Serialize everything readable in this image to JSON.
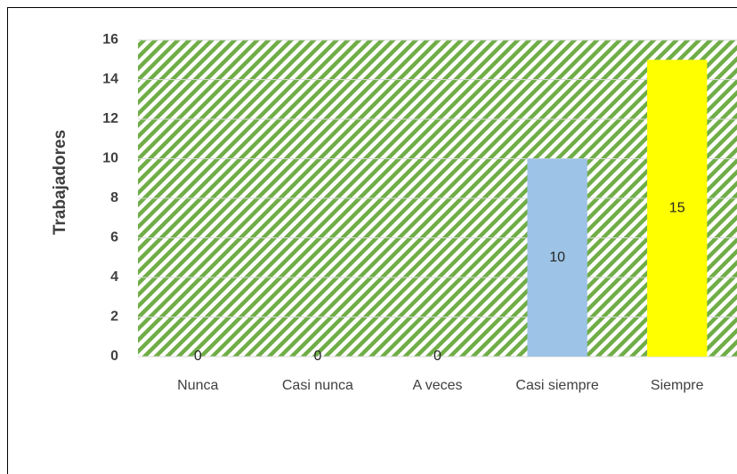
{
  "chart_data": {
    "type": "bar",
    "categories": [
      "Nunca",
      "Casi nunca",
      "A veces",
      "Casi siempre",
      "Siempre"
    ],
    "values": [
      0,
      0,
      0,
      10,
      15
    ],
    "colors": [
      null,
      null,
      null,
      "#9dc3e6",
      "#ffff00"
    ],
    "y_label": "Trabajadores",
    "ylim": [
      0,
      16
    ],
    "yticks": [
      0,
      2,
      4,
      6,
      8,
      10,
      12,
      14,
      16
    ],
    "grid": true
  }
}
